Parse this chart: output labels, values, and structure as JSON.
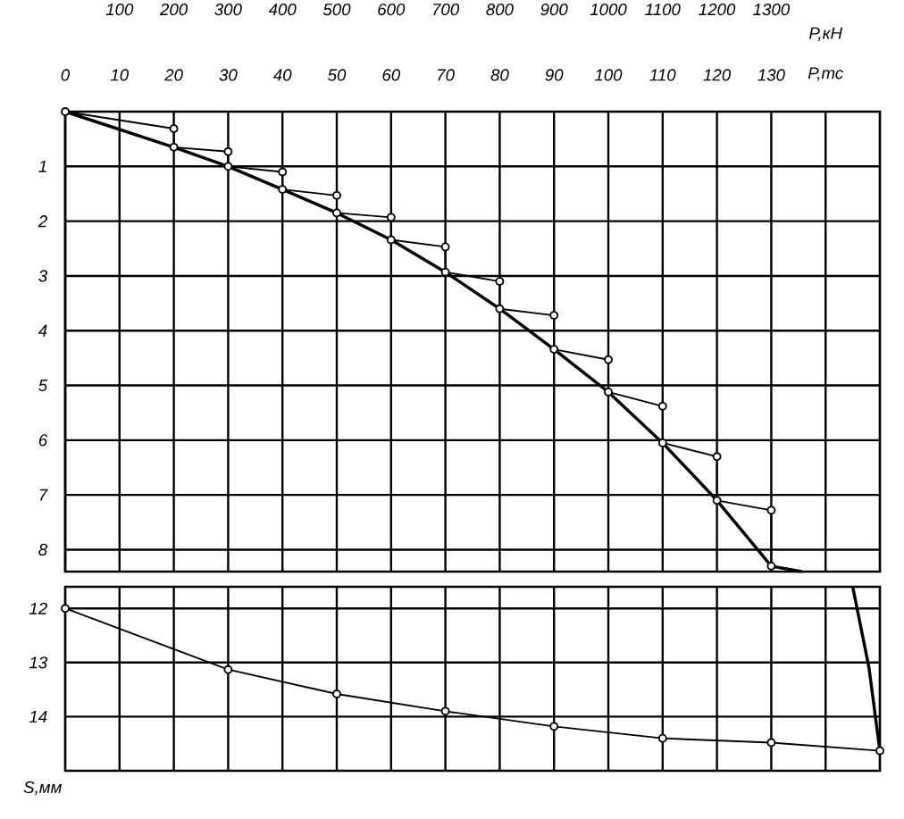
{
  "chart_data": [
    {
      "type": "line",
      "xlabel": "P,тс",
      "x2label": "P,кН",
      "xlim": [
        0,
        150
      ],
      "xticks": [
        0,
        10,
        20,
        30,
        40,
        50,
        60,
        70,
        80,
        90,
        100,
        110,
        120,
        130,
        {
          "value": 140,
          "label": null
        }
      ],
      "x2lim": [
        0,
        1500
      ],
      "x2ticks": [
        100,
        200,
        300,
        400,
        500,
        600,
        700,
        800,
        900,
        1000,
        1100,
        1200,
        1300
      ],
      "ylim": [
        8.4,
        0
      ],
      "yticks": [
        1,
        2,
        3,
        4,
        5,
        6,
        7,
        8
      ],
      "grid": true,
      "line_style": "solid",
      "series": [
        {
          "color": "#000000",
          "marker": "circle",
          "x": [
            0,
            20,
            20,
            30,
            30,
            40,
            40,
            50,
            50,
            60,
            60,
            70,
            70,
            80,
            80,
            90,
            90,
            100,
            100,
            110,
            110,
            120,
            120,
            130,
            130
          ],
          "values": [
            0,
            0.31,
            0.65,
            0.73,
            1.0,
            1.1,
            1.42,
            1.53,
            1.85,
            1.93,
            2.34,
            2.47,
            2.93,
            3.1,
            3.6,
            3.72,
            4.34,
            4.53,
            5.12,
            5.38,
            6.05,
            6.3,
            7.1,
            7.28,
            8.3
          ]
        },
        {
          "color": "#000000",
          "marker": "none",
          "x": [
            0,
            20,
            30,
            40,
            50,
            60,
            70,
            80,
            90,
            100,
            110,
            120,
            130,
            135.6
          ],
          "values": [
            0,
            0.65,
            1.0,
            1.42,
            1.85,
            2.34,
            2.93,
            3.6,
            4.34,
            5.12,
            6.05,
            7.1,
            8.3,
            8.4
          ]
        }
      ]
    },
    {
      "type": "line",
      "ylabel": "S,мм",
      "xlim": [
        0,
        150
      ],
      "xticks": [
        {
          "value": 10,
          "label": null
        },
        {
          "value": 20,
          "label": null
        },
        {
          "value": 30,
          "label": null
        },
        {
          "value": 40,
          "label": null
        },
        {
          "value": 50,
          "label": null
        },
        {
          "value": 60,
          "label": null
        },
        {
          "value": 70,
          "label": null
        },
        {
          "value": 80,
          "label": null
        },
        {
          "value": 90,
          "label": null
        },
        {
          "value": 100,
          "label": null
        },
        {
          "value": 110,
          "label": null
        },
        {
          "value": 120,
          "label": null
        },
        {
          "value": 130,
          "label": null
        },
        {
          "value": 140,
          "label": null
        }
      ],
      "ylim": [
        15,
        11.6
      ],
      "yticks": [
        12,
        13,
        14
      ],
      "tick_labels": "y",
      "grid": true,
      "line_style": "solid",
      "series": [
        {
          "color": "#000000",
          "marker": "none",
          "x": [
            145,
            148,
            150
          ],
          "values": [
            11.6,
            13.1,
            14.63
          ]
        },
        {
          "color": "#000000",
          "marker": "circle",
          "x": [
            150,
            130,
            110,
            90,
            70,
            50,
            30,
            0
          ],
          "values": [
            14.63,
            14.48,
            14.4,
            14.18,
            13.9,
            13.58,
            13.13,
            12.0
          ]
        }
      ]
    }
  ]
}
